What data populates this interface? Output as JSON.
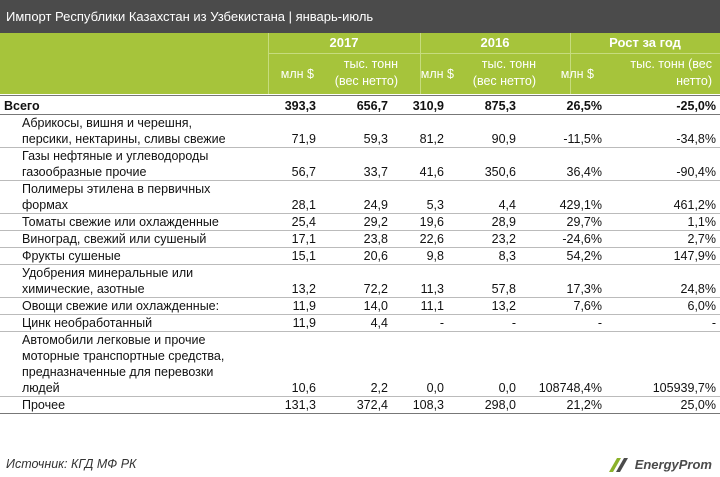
{
  "title": "Импорт Республики Казахстан из Узбекистана | январь-июль",
  "header": {
    "years": [
      "2017",
      "2016",
      "Рост за год"
    ],
    "units": [
      "млн $",
      "тыс. тонн (вес нетто)",
      "млн $",
      "тыс. тонн (вес нетто)",
      "млн $",
      "тыс. тонн (вес нетто)"
    ]
  },
  "total": {
    "name": "Всего",
    "values": [
      "393,3",
      "656,7",
      "310,9",
      "875,3",
      "26,5%",
      "-25,0%"
    ]
  },
  "rows": [
    {
      "lines": [
        "Абрикосы, вишня и черешня,",
        "персики, нектарины, сливы свежие"
      ],
      "values": [
        "71,9",
        "59,3",
        "81,2",
        "90,9",
        "-11,5%",
        "-34,8%"
      ]
    },
    {
      "lines": [
        "Газы нефтяные и углеводороды",
        "газообразные прочие"
      ],
      "values": [
        "56,7",
        "33,7",
        "41,6",
        "350,6",
        "36,4%",
        "-90,4%"
      ]
    },
    {
      "lines": [
        "Полимеры этилена в первичных",
        "формах"
      ],
      "values": [
        "28,1",
        "24,9",
        "5,3",
        "4,4",
        "429,1%",
        "461,2%"
      ]
    },
    {
      "lines": [
        "Томаты свежие или охлажденные"
      ],
      "values": [
        "25,4",
        "29,2",
        "19,6",
        "28,9",
        "29,7%",
        "1,1%"
      ]
    },
    {
      "lines": [
        "Виноград, свежий или сушеный"
      ],
      "values": [
        "17,1",
        "23,8",
        "22,6",
        "23,2",
        "-24,6%",
        "2,7%"
      ]
    },
    {
      "lines": [
        "Фрукты сушеные"
      ],
      "values": [
        "15,1",
        "20,6",
        "9,8",
        "8,3",
        "54,2%",
        "147,9%"
      ]
    },
    {
      "lines": [
        "Удобрения минеральные или",
        "химические, азотные"
      ],
      "values": [
        "13,2",
        "72,2",
        "11,3",
        "57,8",
        "17,3%",
        "24,8%"
      ]
    },
    {
      "lines": [
        "Овощи свежие или охлажденные:"
      ],
      "values": [
        "11,9",
        "14,0",
        "11,1",
        "13,2",
        "7,6%",
        "6,0%"
      ]
    },
    {
      "lines": [
        "Цинк необработанный"
      ],
      "values": [
        "11,9",
        "4,4",
        "-",
        "-",
        "-",
        "-"
      ]
    },
    {
      "lines": [
        "Автомобили легковые и прочие",
        "моторные транспортные средства,",
        "предназначенные для перевозки",
        "людей"
      ],
      "values": [
        "10,6",
        "2,2",
        "0,0",
        "0,0",
        "108748,4%",
        "105939,7%"
      ]
    },
    {
      "lines": [
        "Прочее"
      ],
      "values": [
        "131,3",
        "372,4",
        "108,3",
        "298,0",
        "21,2%",
        "25,0%"
      ]
    }
  ],
  "source": "Источник: КГД МФ РК",
  "logo_text": "EnergyProm",
  "colors": {
    "title_bg": "#4b4b4b",
    "header_bg": "#a6c43b"
  }
}
